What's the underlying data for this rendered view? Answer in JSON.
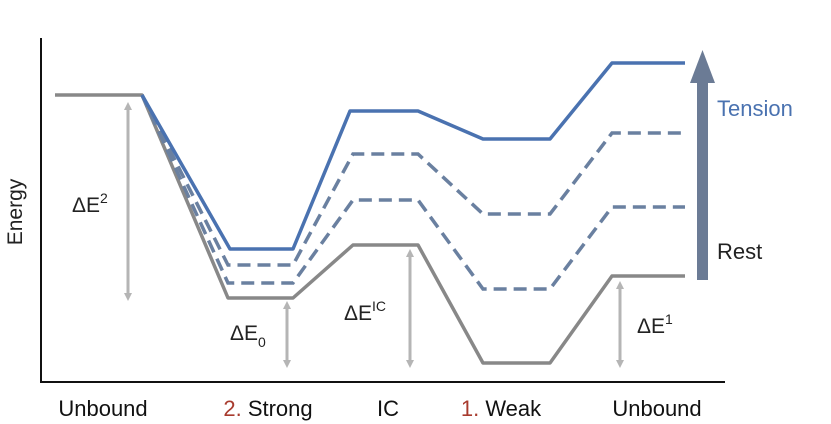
{
  "axis": {
    "ylabel": "Energy"
  },
  "states": {
    "s1": "Unbound",
    "s2_num": "2.",
    "s2_text": " Strong",
    "s3": "IC",
    "s4_num": "1.",
    "s4_text": " Weak",
    "s5": "Unbound"
  },
  "energy_labels": {
    "e2_base": "ΔE",
    "e2_sup": "2",
    "e0_base": "ΔE",
    "e0_sub": "0",
    "eic_base": "ΔE",
    "eic_sup": "IC",
    "e1_base": "ΔE",
    "e1_sup": "1"
  },
  "arrow_labels": {
    "top": "Tension",
    "bottom": "Rest"
  },
  "colors": {
    "gray": "#888888",
    "blue": "#4a72b0",
    "dashed": "#6a80a0",
    "arrow": "#6b7b95",
    "red_number": "#a83b2e",
    "axis": "#111111"
  }
}
